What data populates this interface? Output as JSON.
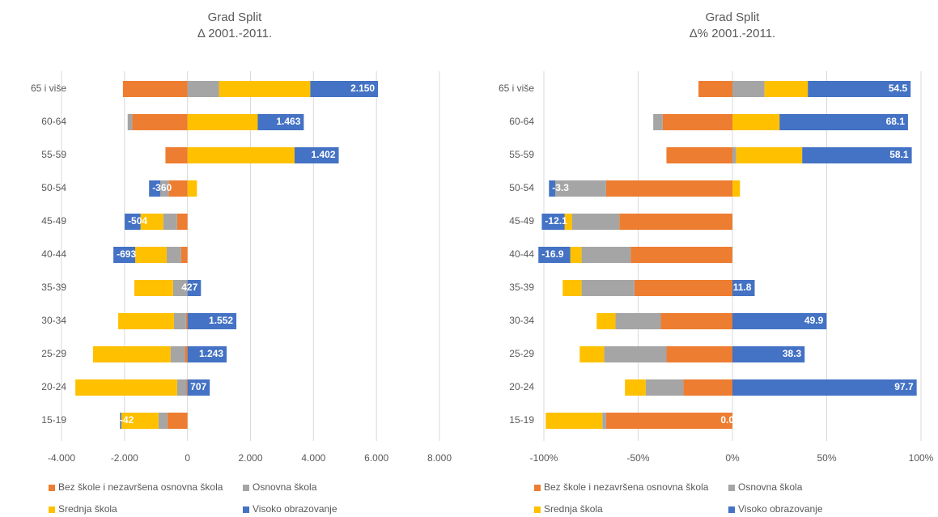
{
  "chart_data": [
    {
      "type": "bar",
      "orientation": "horizontal",
      "stacked": true,
      "title": "Grad Split",
      "subtitle": "Δ 2001.-2011.",
      "categories": [
        "65 i više",
        "60-64",
        "55-59",
        "50-54",
        "45-49",
        "40-44",
        "35-39",
        "30-34",
        "25-29",
        "20-24",
        "15-19"
      ],
      "series": [
        {
          "name": "Bez škole i nezavršena osnovna škola",
          "color": "#ED7D31",
          "values": [
            -2050,
            -1750,
            -700,
            -600,
            -330,
            -200,
            0,
            -50,
            -80,
            -30,
            -640
          ]
        },
        {
          "name": "Osnovna škola",
          "color": "#A5A5A5",
          "values": [
            1000,
            -150,
            0,
            -260,
            -440,
            -460,
            -460,
            -380,
            -460,
            -300,
            -280
          ]
        },
        {
          "name": "Srednja škola",
          "color": "#FFC000",
          "values": [
            2900,
            2230,
            3400,
            300,
            -720,
            -1000,
            -1230,
            -1770,
            -2460,
            -3230,
            -1180
          ]
        },
        {
          "name": "Visoko obrazovanje",
          "color": "#4472C4",
          "values": [
            2150,
            1463,
            1402,
            -360,
            -504,
            -693,
            427,
            1552,
            1243,
            707,
            -42
          ],
          "value_labels": [
            "2.150",
            "1.463",
            "1.402",
            "-360",
            "-504",
            "-693",
            "427",
            "1.552",
            "1.243",
            "707",
            "-42"
          ]
        }
      ],
      "xlim": [
        -4000,
        8000
      ],
      "xticks": [
        {
          "value": -4000,
          "label": "-4.000"
        },
        {
          "value": -2000,
          "label": "-2.000"
        },
        0,
        {
          "value": 2000,
          "label": "2.000"
        },
        {
          "value": 4000,
          "label": "4.000"
        },
        {
          "value": 6000,
          "label": "6.000"
        },
        {
          "value": 8000,
          "label": "8.000"
        }
      ],
      "grid": true
    },
    {
      "type": "bar",
      "orientation": "horizontal",
      "stacked": true,
      "title": "Grad Split",
      "subtitle": "Δ% 2001.-2011.",
      "categories": [
        "65 i više",
        "60-64",
        "55-59",
        "50-54",
        "45-49",
        "40-44",
        "35-39",
        "30-34",
        "25-29",
        "20-24",
        "15-19"
      ],
      "series": [
        {
          "name": "Bez škole i nezavršena osnovna škola",
          "color": "#ED7D31",
          "values": [
            -18,
            -37,
            -35,
            -67,
            -60,
            -54,
            -52,
            -38,
            -35,
            -26,
            -67
          ]
        },
        {
          "name": "Osnovna škola",
          "color": "#A5A5A5",
          "values": [
            17,
            -5,
            2,
            -27,
            -25,
            -26,
            -28,
            -24,
            -33,
            -20,
            -2
          ]
        },
        {
          "name": "Srednja škola",
          "color": "#FFC000",
          "values": [
            23,
            25,
            35,
            4,
            -4,
            -6,
            -10,
            -10,
            -13,
            -11,
            -30
          ]
        },
        {
          "name": "Visoko obrazovanje",
          "color": "#4472C4",
          "values": [
            54.5,
            68.1,
            58.1,
            -3.3,
            -12.1,
            -16.9,
            11.8,
            49.9,
            38.3,
            97.7,
            0
          ],
          "value_labels": [
            "54.5",
            "68.1",
            "58.1",
            "-3.3",
            "-12.1",
            "-16.9",
            "11.8",
            "49.9",
            "38.3",
            "97.7",
            "0.0"
          ]
        }
      ],
      "xlim": [
        -100,
        100
      ],
      "xticks": [
        {
          "value": -100,
          "label": "-100%"
        },
        {
          "value": -50,
          "label": "-50%"
        },
        {
          "value": 0,
          "label": "0%"
        },
        {
          "value": 50,
          "label": "50%"
        },
        {
          "value": 100,
          "label": "100%"
        }
      ],
      "grid": true
    }
  ]
}
